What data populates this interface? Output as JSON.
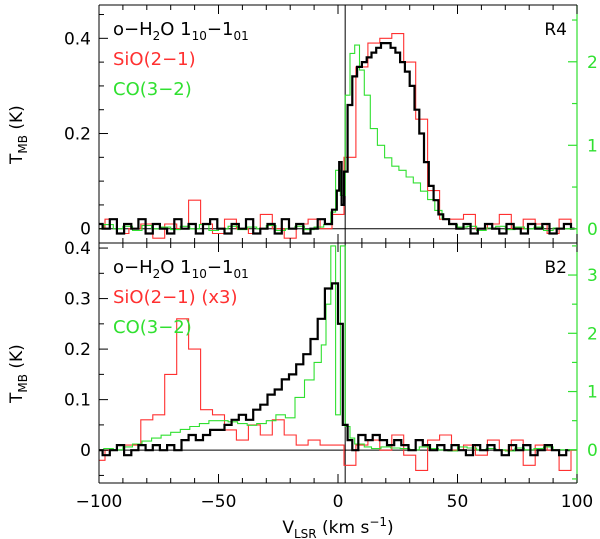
{
  "chart_data": [
    {
      "type": "line",
      "panel_label": "R4",
      "xlim": [
        -100,
        100
      ],
      "ylim": [
        -0.03,
        0.47
      ],
      "y_right_lim": [
        -0.17,
        2.68
      ],
      "ylabel_main": "T",
      "ylabel_sub": "MB",
      "ylabel_unit": "(K)",
      "left_ticks": [
        {
          "value": 0,
          "label": "0"
        },
        {
          "value": 0.2,
          "label": "0.2"
        },
        {
          "value": 0.4,
          "label": "0.4"
        }
      ],
      "right_ticks": [
        {
          "value": 0,
          "label": "0"
        },
        {
          "value": 1,
          "label": "1"
        },
        {
          "value": 2,
          "label": "2"
        }
      ],
      "vline_x": 3,
      "legend": [
        {
          "pre": "o−H",
          "sub1": "2",
          "mid": "O 1",
          "sub2": "10",
          "mid2": "−1",
          "sub3": "01",
          "color": "#000000"
        },
        {
          "pre": "SiO(2−1)",
          "color": "#ff3030"
        },
        {
          "pre": "CO(3−2)",
          "color": "#30e030"
        }
      ],
      "series": [
        {
          "name": "o-H2O 1_10-1_01",
          "color": "#000000",
          "axis": "left",
          "width": 2.2,
          "x": [
            -100,
            -97,
            -94,
            -91,
            -88,
            -85,
            -82,
            -79,
            -76,
            -73,
            -70,
            -67,
            -64,
            -61,
            -58,
            -55,
            -52,
            -49,
            -46,
            -43,
            -40,
            -37,
            -34,
            -31,
            -28,
            -25,
            -22,
            -19,
            -16,
            -13,
            -10,
            -7,
            -4,
            -1,
            0,
            1,
            2,
            3,
            5,
            7,
            9,
            11,
            13,
            15,
            17,
            19,
            21,
            23,
            25,
            27,
            29,
            31,
            33,
            35,
            37,
            39,
            41,
            43,
            45,
            48,
            51,
            54,
            57,
            60,
            63,
            66,
            69,
            72,
            75,
            78,
            81,
            84,
            87,
            90,
            93,
            96,
            99
          ],
          "y": [
            0.01,
            0.0,
            0.02,
            -0.01,
            0.01,
            0.0,
            0.02,
            -0.01,
            0.01,
            0.0,
            -0.01,
            0.02,
            0.0,
            0.01,
            -0.01,
            0.01,
            0.02,
            0.0,
            -0.01,
            0.01,
            0.0,
            0.02,
            -0.01,
            0.0,
            0.01,
            -0.01,
            0.02,
            0.0,
            0.01,
            -0.01,
            0.0,
            0.02,
            0.01,
            0.04,
            0.08,
            0.14,
            0.05,
            0.12,
            0.26,
            0.32,
            0.34,
            0.35,
            0.36,
            0.37,
            0.38,
            0.39,
            0.39,
            0.38,
            0.37,
            0.35,
            0.33,
            0.3,
            0.25,
            0.2,
            0.14,
            0.09,
            0.06,
            0.03,
            0.02,
            0.01,
            0.0,
            0.01,
            -0.01,
            0.0,
            0.01,
            0.0,
            -0.01,
            0.01,
            0.0,
            -0.01,
            0.01,
            0.0,
            0.01,
            -0.01,
            0.0,
            0.01,
            0.0
          ]
        },
        {
          "name": "SiO(2-1)",
          "color": "#ff3030",
          "axis": "left",
          "width": 1.1,
          "x": [
            -100,
            -95,
            -90,
            -85,
            -80,
            -75,
            -70,
            -65,
            -60,
            -55,
            -50,
            -45,
            -40,
            -35,
            -30,
            -25,
            -20,
            -15,
            -10,
            -5,
            0,
            5,
            10,
            15,
            20,
            25,
            30,
            35,
            40,
            45,
            50,
            55,
            60,
            65,
            70,
            75,
            80,
            85,
            90,
            95,
            100
          ],
          "y": [
            0.0,
            0.02,
            -0.01,
            0.0,
            0.01,
            -0.02,
            0.01,
            0.0,
            0.06,
            0.01,
            -0.01,
            0.02,
            0.0,
            -0.01,
            0.03,
            0.0,
            -0.02,
            0.01,
            0.02,
            0.0,
            0.03,
            0.15,
            0.34,
            0.39,
            0.4,
            0.41,
            0.35,
            0.23,
            0.08,
            0.02,
            0.02,
            0.03,
            0.0,
            0.01,
            0.03,
            0.0,
            0.02,
            0.01,
            -0.01,
            0.02,
            0.0
          ]
        },
        {
          "name": "CO(3-2)",
          "color": "#30e030",
          "axis": "right",
          "width": 1.1,
          "x": [
            -100,
            -96,
            -92,
            -88,
            -84,
            -80,
            -76,
            -72,
            -68,
            -64,
            -60,
            -56,
            -52,
            -48,
            -44,
            -40,
            -36,
            -32,
            -28,
            -24,
            -20,
            -16,
            -12,
            -8,
            -4,
            -2,
            0,
            2,
            4,
            6,
            8,
            10,
            12,
            15,
            18,
            21,
            24,
            27,
            30,
            33,
            36,
            39,
            42,
            45,
            48,
            52,
            56,
            60,
            64,
            68,
            72,
            76,
            80,
            84,
            88,
            92,
            96,
            100
          ],
          "y": [
            0.0,
            0.05,
            0.0,
            0.03,
            -0.02,
            0.04,
            0.0,
            0.02,
            -0.01,
            0.03,
            0.0,
            0.05,
            -0.02,
            0.0,
            0.03,
            -0.01,
            0.02,
            0.0,
            0.04,
            -0.02,
            0.0,
            0.03,
            -0.01,
            0.02,
            0.05,
            0.2,
            0.7,
            0.4,
            1.6,
            2.1,
            2.2,
            1.9,
            1.6,
            1.2,
            1.0,
            0.85,
            0.75,
            0.7,
            0.62,
            0.55,
            0.45,
            0.35,
            0.22,
            0.12,
            0.05,
            0.02,
            0.03,
            -0.02,
            0.01,
            0.03,
            -0.01,
            0.02,
            0.0,
            0.02,
            -0.02,
            0.01,
            0.0,
            0.0
          ]
        }
      ]
    },
    {
      "type": "line",
      "panel_label": "B2",
      "xlim": [
        -100,
        100
      ],
      "ylim": [
        -0.065,
        0.41
      ],
      "y_right_lim": [
        -0.57,
        3.55
      ],
      "xlabel_main": "V",
      "xlabel_sub": "LSR",
      "xlabel_unit_pre": " (km s",
      "xlabel_unit_sup": "−1",
      "xlabel_unit_post": ")",
      "ylabel_main": "T",
      "ylabel_sub": "MB",
      "ylabel_unit": "(K)",
      "x_ticks": [
        {
          "value": -100,
          "label": "−100"
        },
        {
          "value": -50,
          "label": "−50"
        },
        {
          "value": 0,
          "label": "0"
        },
        {
          "value": 50,
          "label": "50"
        },
        {
          "value": 100,
          "label": "100"
        }
      ],
      "left_ticks": [
        {
          "value": 0,
          "label": "0"
        },
        {
          "value": 0.1,
          "label": "0.1"
        },
        {
          "value": 0.2,
          "label": "0.2"
        },
        {
          "value": 0.3,
          "label": "0.3"
        },
        {
          "value": 0.4,
          "label": "0.4"
        }
      ],
      "right_ticks": [
        {
          "value": 0,
          "label": "0"
        },
        {
          "value": 1,
          "label": "1"
        },
        {
          "value": 2,
          "label": "2"
        },
        {
          "value": 3,
          "label": "3"
        }
      ],
      "vline_x": 3,
      "legend": [
        {
          "pre": "o−H",
          "sub1": "2",
          "mid": "O 1",
          "sub2": "10",
          "mid2": "−1",
          "sub3": "01",
          "color": "#000000"
        },
        {
          "pre": "SiO(2−1) (x3)",
          "color": "#ff3030"
        },
        {
          "pre": "CO(3−2)",
          "color": "#30e030"
        }
      ],
      "series": [
        {
          "name": "o-H2O 1_10-1_01",
          "color": "#000000",
          "axis": "left",
          "width": 2.2,
          "x": [
            -100,
            -97,
            -94,
            -91,
            -88,
            -85,
            -82,
            -79,
            -76,
            -73,
            -70,
            -67,
            -64,
            -61,
            -58,
            -55,
            -52,
            -49,
            -46,
            -43,
            -40,
            -37,
            -34,
            -31,
            -28,
            -25,
            -22,
            -19,
            -16,
            -13,
            -10,
            -7,
            -4,
            -1,
            1,
            3,
            5,
            7,
            10,
            13,
            16,
            19,
            22,
            25,
            28,
            31,
            34,
            37,
            40,
            43,
            46,
            49,
            52,
            55,
            58,
            61,
            64,
            67,
            70,
            73,
            76,
            79,
            82,
            85,
            88,
            91,
            94,
            97
          ],
          "y": [
            0.0,
            -0.01,
            0.0,
            0.01,
            -0.01,
            0.0,
            0.01,
            0.0,
            0.01,
            0.0,
            0.01,
            0.0,
            0.02,
            0.03,
            0.02,
            0.03,
            0.04,
            0.04,
            0.05,
            0.06,
            0.07,
            0.06,
            0.08,
            0.09,
            0.11,
            0.12,
            0.14,
            0.15,
            0.17,
            0.19,
            0.22,
            0.26,
            0.32,
            0.33,
            0.25,
            0.05,
            0.02,
            0.0,
            0.03,
            0.02,
            0.03,
            0.02,
            0.01,
            0.02,
            0.01,
            0.0,
            0.02,
            0.01,
            0.0,
            0.01,
            0.0,
            0.01,
            0.0,
            -0.01,
            0.01,
            0.0,
            0.01,
            0.0,
            -0.01,
            0.01,
            0.0,
            0.01,
            -0.01,
            0.0,
            0.01,
            0.0,
            -0.01,
            0.0
          ]
        },
        {
          "name": "SiO(2-1) (x3)",
          "color": "#ff3030",
          "axis": "left",
          "width": 1.1,
          "x": [
            -100,
            -95,
            -90,
            -85,
            -80,
            -75,
            -70,
            -65,
            -60,
            -55,
            -50,
            -45,
            -40,
            -35,
            -30,
            -25,
            -20,
            -15,
            -10,
            -5,
            0,
            5,
            10,
            15,
            20,
            25,
            30,
            35,
            40,
            45,
            50,
            55,
            60,
            65,
            70,
            75,
            80,
            85,
            90,
            95,
            100
          ],
          "y": [
            -0.02,
            0.0,
            0.01,
            0.01,
            0.06,
            0.07,
            0.15,
            0.26,
            0.2,
            0.08,
            0.07,
            0.04,
            0.02,
            0.05,
            0.03,
            0.06,
            0.03,
            0.01,
            0.02,
            0.01,
            0.01,
            -0.03,
            0.01,
            0.02,
            0.0,
            0.03,
            -0.01,
            -0.04,
            0.02,
            0.03,
            0.0,
            0.01,
            -0.01,
            0.02,
            0.0,
            0.02,
            -0.03,
            0.01,
            0.0,
            -0.04,
            0.0
          ]
        },
        {
          "name": "CO(3-2)",
          "color": "#30e030",
          "axis": "right",
          "width": 1.1,
          "x": [
            -100,
            -96,
            -92,
            -88,
            -84,
            -80,
            -76,
            -72,
            -68,
            -64,
            -60,
            -56,
            -52,
            -48,
            -44,
            -40,
            -36,
            -32,
            -28,
            -24,
            -20,
            -16,
            -12,
            -8,
            -6,
            -4,
            -2,
            0,
            2,
            4,
            6,
            8,
            10,
            12,
            16,
            20,
            24,
            28,
            32,
            36,
            40,
            44,
            48,
            52,
            56,
            60,
            64,
            68,
            72,
            76,
            80,
            84,
            88,
            92,
            96,
            100
          ],
          "y": [
            0.0,
            0.02,
            0.0,
            0.05,
            0.1,
            0.15,
            0.2,
            0.25,
            0.3,
            0.35,
            0.4,
            0.45,
            0.5,
            0.5,
            0.48,
            0.45,
            0.42,
            0.45,
            0.5,
            0.6,
            0.55,
            0.9,
            1.2,
            1.5,
            1.8,
            2.5,
            3.5,
            0.6,
            3.5,
            0.4,
            0.2,
            0.1,
            0.1,
            0.05,
            0.02,
            0.05,
            0.03,
            0.02,
            0.0,
            0.05,
            0.02,
            0.0,
            -0.02,
            0.05,
            0.03,
            0.0,
            0.02,
            0.0,
            -0.02,
            0.03,
            0.0,
            0.02,
            0.05,
            0.0,
            0.0,
            0.0
          ]
        }
      ]
    }
  ]
}
